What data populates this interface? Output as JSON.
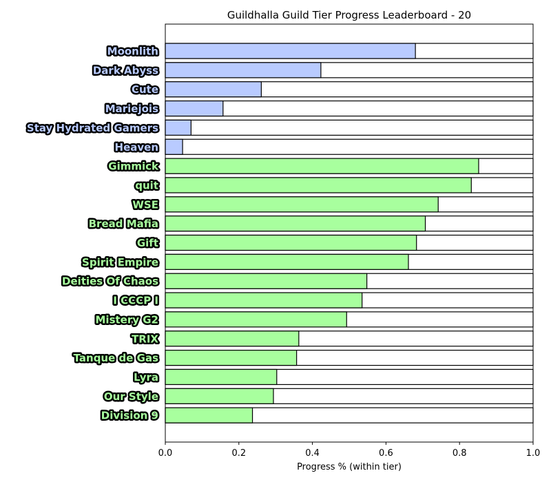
{
  "chart_data": {
    "type": "bar",
    "orientation": "horizontal",
    "title": "Guildhalla Guild Tier Progress Leaderboard - 20",
    "xlabel": "Progress % (within tier)",
    "ylabel": "",
    "xlim": [
      0,
      1.0
    ],
    "xticks": [
      "0.0",
      "0.2",
      "0.4",
      "0.6",
      "0.8",
      "1.0"
    ],
    "grid": false,
    "colors": {
      "tier_a": "#b9cbff",
      "tier_b": "#a8ff9e",
      "remainder": "#ffffff",
      "outline": "#000000"
    },
    "categories": [
      "Moonlith",
      "Dark Abyss",
      "Cute",
      "Mariejois",
      "Stay Hydrated Gamers",
      "Heaven",
      "Gimmick",
      "quit",
      "WSE",
      "Bread Mafia",
      "Gift",
      "Spirit Empire",
      "Deities Of Chaos",
      "I CCCP I",
      "Mistery G2",
      "TRIX",
      "Tanque de Gas",
      "Lyra",
      "Our Style",
      "Division 9"
    ],
    "values": [
      0.68,
      0.423,
      0.261,
      0.157,
      0.07,
      0.047,
      0.852,
      0.832,
      0.742,
      0.707,
      0.683,
      0.661,
      0.548,
      0.535,
      0.493,
      0.363,
      0.357,
      0.303,
      0.294,
      0.237
    ],
    "tiers": [
      "a",
      "a",
      "a",
      "a",
      "a",
      "a",
      "b",
      "b",
      "b",
      "b",
      "b",
      "b",
      "b",
      "b",
      "b",
      "b",
      "b",
      "b",
      "b",
      "b"
    ]
  }
}
